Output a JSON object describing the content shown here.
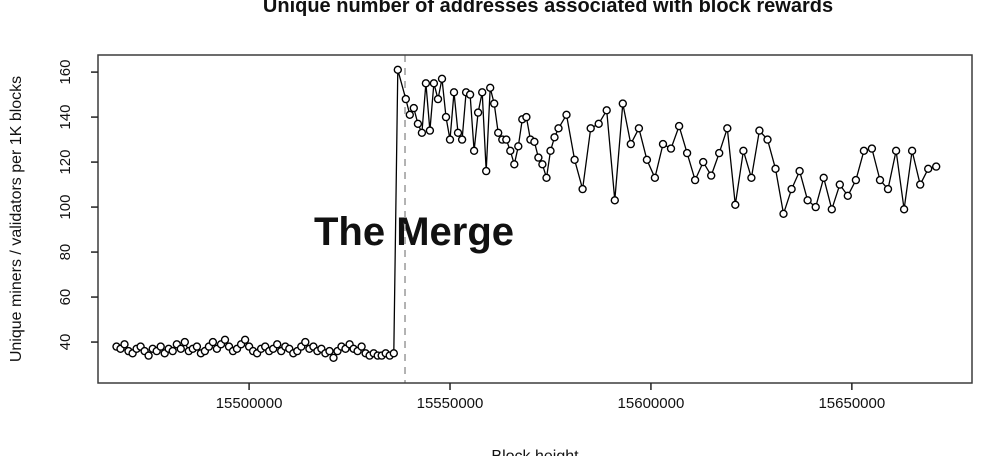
{
  "page": {
    "background": "#ffffff"
  },
  "chart_data": {
    "type": "line",
    "title": "Unique number of addresses associated with block rewards",
    "xlabel": "Block height",
    "ylabel": "Unique miners / validators per 1K blocks",
    "watermark": "The Merge",
    "legend": null,
    "grid": false,
    "marker": "open-circle",
    "xlim": [
      15462400,
      15679900
    ],
    "ylim": [
      21.8,
      167.6
    ],
    "xticks": [
      15500000,
      15550000,
      15600000,
      15650000
    ],
    "yticks": [
      40,
      60,
      80,
      100,
      120,
      140,
      160
    ],
    "merge_line_x": 15538800,
    "colors": {
      "line": "#000000",
      "marker_fill": "#ffffff",
      "frame": "#3c3c3c",
      "tick": "#222222",
      "watermark": "#cdcdcd",
      "merge_line": "#9a9a9a"
    },
    "series": [
      {
        "name": "unique-addresses-per-1k-blocks",
        "points": [
          [
            15467000,
            38
          ],
          [
            15468000,
            37
          ],
          [
            15469000,
            39
          ],
          [
            15470000,
            36
          ],
          [
            15471000,
            35
          ],
          [
            15472000,
            37
          ],
          [
            15473000,
            38
          ],
          [
            15474000,
            36
          ],
          [
            15475000,
            34
          ],
          [
            15476000,
            37
          ],
          [
            15477000,
            36
          ],
          [
            15478000,
            38
          ],
          [
            15479000,
            35
          ],
          [
            15480000,
            37
          ],
          [
            15481000,
            36
          ],
          [
            15482000,
            39
          ],
          [
            15483000,
            37
          ],
          [
            15484000,
            40
          ],
          [
            15485000,
            36
          ],
          [
            15486000,
            37
          ],
          [
            15487000,
            38
          ],
          [
            15488000,
            35
          ],
          [
            15489000,
            36
          ],
          [
            15490000,
            38
          ],
          [
            15491000,
            40
          ],
          [
            15492000,
            37
          ],
          [
            15493000,
            39
          ],
          [
            15494000,
            41
          ],
          [
            15495000,
            38
          ],
          [
            15496000,
            36
          ],
          [
            15497000,
            37
          ],
          [
            15498000,
            39
          ],
          [
            15499000,
            41
          ],
          [
            15500000,
            38
          ],
          [
            15501000,
            36
          ],
          [
            15502000,
            35
          ],
          [
            15503000,
            37
          ],
          [
            15504000,
            38
          ],
          [
            15505000,
            36
          ],
          [
            15506000,
            37
          ],
          [
            15507000,
            39
          ],
          [
            15508000,
            36
          ],
          [
            15509000,
            38
          ],
          [
            15510000,
            37
          ],
          [
            15511000,
            35
          ],
          [
            15512000,
            36
          ],
          [
            15513000,
            38
          ],
          [
            15514000,
            40
          ],
          [
            15515000,
            37
          ],
          [
            15516000,
            38
          ],
          [
            15517000,
            36
          ],
          [
            15518000,
            37
          ],
          [
            15519000,
            35
          ],
          [
            15520000,
            36
          ],
          [
            15521000,
            33
          ],
          [
            15522000,
            36
          ],
          [
            15523000,
            38
          ],
          [
            15524000,
            37
          ],
          [
            15525000,
            39
          ],
          [
            15526000,
            37
          ],
          [
            15527000,
            36
          ],
          [
            15528000,
            38
          ],
          [
            15529000,
            35
          ],
          [
            15530000,
            34
          ],
          [
            15531000,
            35
          ],
          [
            15532000,
            34
          ],
          [
            15533000,
            34
          ],
          [
            15534000,
            35
          ],
          [
            15535000,
            34
          ],
          [
            15536000,
            35
          ],
          [
            15537000,
            161
          ],
          [
            15539000,
            148
          ],
          [
            15540000,
            141
          ],
          [
            15541000,
            144
          ],
          [
            15542000,
            137
          ],
          [
            15543000,
            133
          ],
          [
            15544000,
            155
          ],
          [
            15545000,
            134
          ],
          [
            15546000,
            155
          ],
          [
            15547000,
            148
          ],
          [
            15548000,
            157
          ],
          [
            15549000,
            140
          ],
          [
            15550000,
            130
          ],
          [
            15551000,
            151
          ],
          [
            15552000,
            133
          ],
          [
            15553000,
            130
          ],
          [
            15554000,
            151
          ],
          [
            15555000,
            150
          ],
          [
            15556000,
            125
          ],
          [
            15557000,
            142
          ],
          [
            15558000,
            151
          ],
          [
            15559000,
            116
          ],
          [
            15560000,
            153
          ],
          [
            15561000,
            146
          ],
          [
            15562000,
            133
          ],
          [
            15563000,
            130
          ],
          [
            15564000,
            130
          ],
          [
            15565000,
            125
          ],
          [
            15566000,
            119
          ],
          [
            15567000,
            127
          ],
          [
            15568000,
            139
          ],
          [
            15569000,
            140
          ],
          [
            15570000,
            130
          ],
          [
            15571000,
            129
          ],
          [
            15572000,
            122
          ],
          [
            15573000,
            119
          ],
          [
            15574000,
            113
          ],
          [
            15575000,
            125
          ],
          [
            15576000,
            131
          ],
          [
            15577000,
            135
          ],
          [
            15579000,
            141
          ],
          [
            15581000,
            121
          ],
          [
            15583000,
            108
          ],
          [
            15585000,
            135
          ],
          [
            15587000,
            137
          ],
          [
            15589000,
            143
          ],
          [
            15591000,
            103
          ],
          [
            15593000,
            146
          ],
          [
            15595000,
            128
          ],
          [
            15597000,
            135
          ],
          [
            15599000,
            121
          ],
          [
            15601000,
            113
          ],
          [
            15603000,
            128
          ],
          [
            15605000,
            126
          ],
          [
            15607000,
            136
          ],
          [
            15609000,
            124
          ],
          [
            15611000,
            112
          ],
          [
            15613000,
            120
          ],
          [
            15615000,
            114
          ],
          [
            15617000,
            124
          ],
          [
            15619000,
            135
          ],
          [
            15621000,
            101
          ],
          [
            15623000,
            125
          ],
          [
            15625000,
            113
          ],
          [
            15627000,
            134
          ],
          [
            15629000,
            130
          ],
          [
            15631000,
            117
          ],
          [
            15633000,
            97
          ],
          [
            15635000,
            108
          ],
          [
            15637000,
            116
          ],
          [
            15639000,
            103
          ],
          [
            15641000,
            100
          ],
          [
            15643000,
            113
          ],
          [
            15645000,
            99
          ],
          [
            15647000,
            110
          ],
          [
            15649000,
            105
          ],
          [
            15651000,
            112
          ],
          [
            15653000,
            125
          ],
          [
            15655000,
            126
          ],
          [
            15657000,
            112
          ],
          [
            15659000,
            108
          ],
          [
            15661000,
            125
          ],
          [
            15663000,
            99
          ],
          [
            15665000,
            125
          ],
          [
            15667000,
            110
          ],
          [
            15669000,
            117
          ],
          [
            15671000,
            118
          ]
        ]
      }
    ]
  }
}
